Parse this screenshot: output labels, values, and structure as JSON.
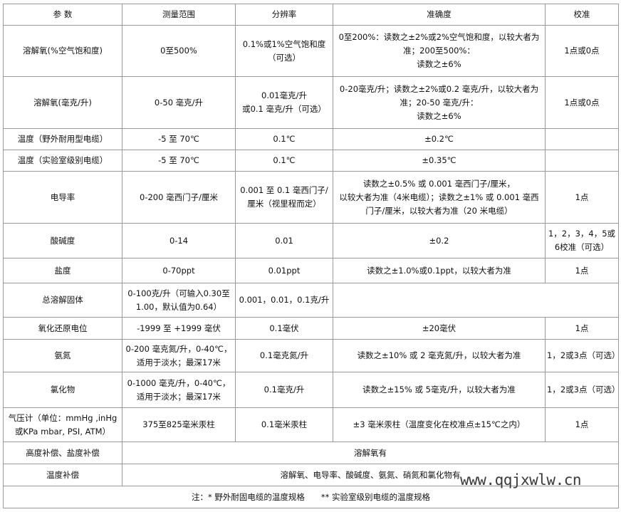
{
  "header": [
    "参 数",
    "测量范围",
    "分辨率",
    "准确度",
    "校准"
  ],
  "rows": [
    {
      "param": "溶解氧(%空气饱和度)",
      "range": "0至500%",
      "resolution": [
        "0.1%或1%空气饱和度",
        "（可选）"
      ],
      "accuracy": [
        "0至200%：读数之±2%或2%空气饱和度，以较大者为",
        "准；200至500%：",
        "读数之±6%"
      ],
      "calibration": "1点或0点"
    },
    {
      "param": "溶解氧(毫克/升)",
      "range": "0-50 毫克/升",
      "resolution": [
        "0.01毫克/升",
        "或0.1 毫克/升（可选）"
      ],
      "accuracy": [
        "0-20毫克/升；读数之±2%或0.2 毫克/升，以较大者为",
        "准；20-50 毫克/升：",
        "读数之±6%"
      ],
      "calibration": "1点或0点"
    },
    {
      "param": "温度（野外耐用型电缆）",
      "range": "-5 至 70℃",
      "resolution": [
        "0.1℃"
      ],
      "accuracy": [
        "±0.2℃"
      ],
      "calibration": ""
    },
    {
      "param": "温度（实验室级别电缆）",
      "range": "-5 至 70℃",
      "resolution": [
        "0.1℃"
      ],
      "accuracy": [
        "±0.35℃"
      ],
      "calibration": ""
    },
    {
      "param": "电导率",
      "range": "0-200 毫西门子/厘米",
      "resolution": [
        "0.001 至 0.1 毫西门子/",
        "厘米（视里程而定）"
      ],
      "accuracy": [
        "读数之±0.5% 或 0.001 毫西门子/厘米，",
        "以较大者为准（4米电缆）；读数之±1% 或 0.001 毫西",
        "门子/厘米，以较大者为准（20 米电缆）"
      ],
      "calibration": "1点"
    },
    {
      "param": "酸碱度",
      "range": "0-14",
      "resolution": [
        "0.01"
      ],
      "accuracy": [
        "±0.2"
      ],
      "calibration": "1，2，3，4，5或6校准（可选）"
    },
    {
      "param": "盐度",
      "range": "0-70ppt",
      "resolution": [
        "0.01ppt"
      ],
      "accuracy": [
        "读数之±1.0%或0.1ppt，以较大者为准"
      ],
      "calibration": "1点"
    },
    {
      "param": "总溶解固体",
      "range": "0-100克/升（可输入0.30至1.00，默认值为0.64）",
      "resolution": [
        "0.001，0.01，0.1克/升"
      ],
      "accuracy": [
        ""
      ],
      "calibration": ""
    },
    {
      "param": "氧化还原电位",
      "range": "-1999 至 +1999 毫伏",
      "resolution": [
        "0.1毫伏"
      ],
      "accuracy": [
        "±20毫伏"
      ],
      "calibration": "1点"
    },
    {
      "param": "氨氮",
      "range": "0-200 毫克氮/升，0-40℃，适用于淡水；最深17米",
      "resolution": [
        "0.1毫克氮/升"
      ],
      "accuracy": [
        "读数之±10% 或 2 毫克氮/升，以较大者为准"
      ],
      "calibration": "1，2或3点（可选）"
    },
    {
      "param": "氯化物",
      "range": "0-1000 毫克/升，0-40℃，适用于淡水；最深17米",
      "resolution": [
        "0.1毫克/升"
      ],
      "accuracy": [
        "读数之±15% 或 5毫克/升，以较大者为准"
      ],
      "calibration": "1，2或3点（可选）"
    },
    {
      "param": "气压计（单位：mmHg ,inHg或KPa mbar, PSI, ATM）",
      "range": "375至825毫米汞柱",
      "resolution": [
        "0.1毫米汞柱"
      ],
      "accuracy": [
        "±3 毫米汞柱（温度变化在校准点±15℃之内）"
      ],
      "calibration": "1点"
    }
  ],
  "compensation": [
    {
      "param": "高度补偿、盐度补偿",
      "value": "溶解氧有"
    },
    {
      "param": "温度补偿",
      "value": "溶解氧、电导率、酸碱度、氨氮、硝氮和氯化物有"
    }
  ],
  "note": "注：* 野外耐固电缆的温度规格　　** 实验室级别电缆的温度规格",
  "watermark": "www.qqjxwlw.cn"
}
